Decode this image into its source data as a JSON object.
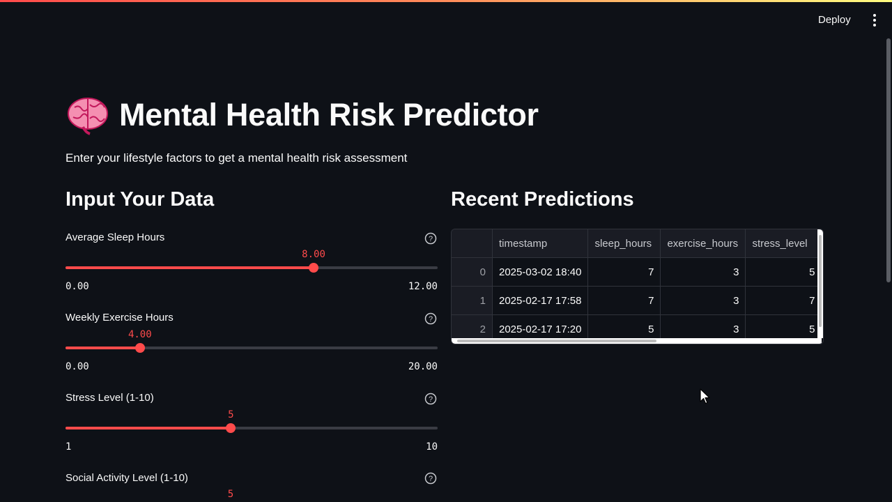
{
  "header": {
    "deploy_label": "Deploy",
    "menu_icon": "kebab-menu-icon"
  },
  "page": {
    "icon": "brain-icon",
    "title": "Mental Health Risk Predictor",
    "subtitle": "Enter your lifestyle factors to get a mental health risk assessment"
  },
  "input_section": {
    "heading": "Input Your Data",
    "sliders": [
      {
        "label": "Average Sleep Hours",
        "value": "8.00",
        "min": "0.00",
        "max": "12.00",
        "fraction": 0.6667
      },
      {
        "label": "Weekly Exercise Hours",
        "value": "4.00",
        "min": "0.00",
        "max": "20.00",
        "fraction": 0.2
      },
      {
        "label": "Stress Level (1-10)",
        "value": "5",
        "min": "1",
        "max": "10",
        "fraction": 0.4444
      },
      {
        "label": "Social Activity Level (1-10)",
        "value": "5"
      }
    ]
  },
  "predictions": {
    "heading": "Recent Predictions",
    "columns": [
      "",
      "timestamp",
      "sleep_hours",
      "exercise_hours",
      "stress_level"
    ],
    "rows": [
      [
        "0",
        "2025-03-02 18:40",
        "7",
        "3",
        "5"
      ],
      [
        "1",
        "2025-02-17 17:58",
        "7",
        "3",
        "7"
      ],
      [
        "2",
        "2025-02-17 17:20",
        "5",
        "3",
        "5"
      ]
    ]
  },
  "colors": {
    "accent": "#ff4b4b",
    "background": "#0e1117"
  }
}
